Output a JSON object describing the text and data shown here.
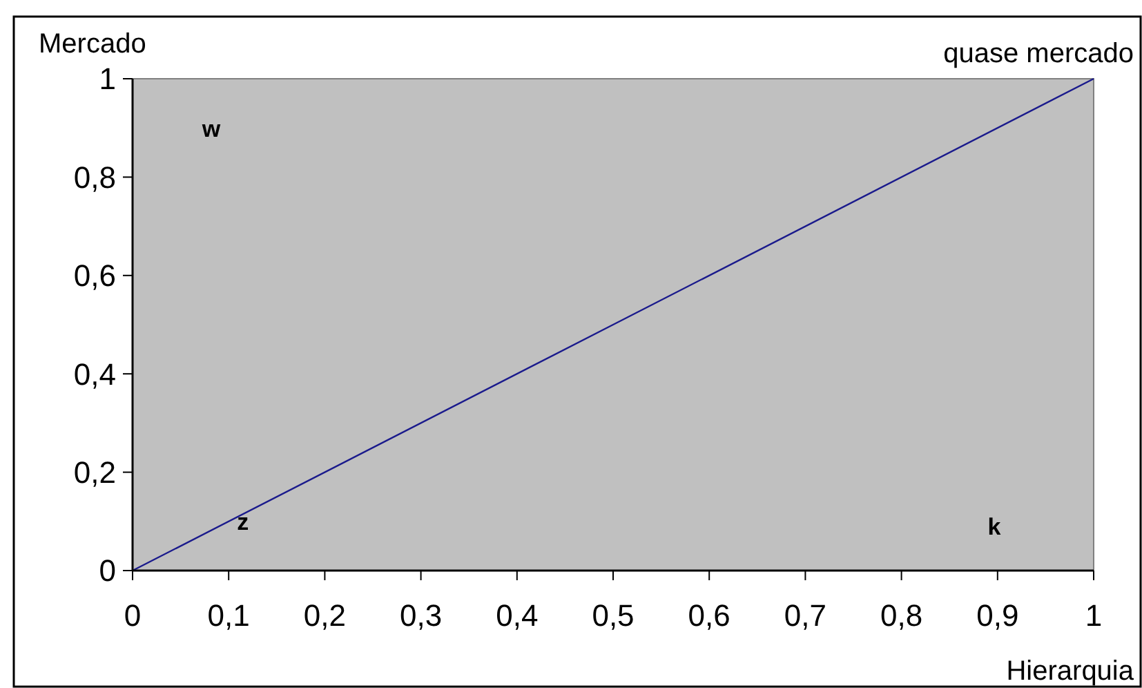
{
  "chart_data": {
    "type": "line",
    "xlabel": "Hierarquia",
    "ylabel": "Mercado",
    "x": [
      0,
      0.5,
      1
    ],
    "series": [
      {
        "color": "#1a1a8c",
        "values": [
          0,
          0.5,
          1
        ]
      }
    ],
    "xlim": [
      0,
      1
    ],
    "ylim": [
      0,
      1
    ],
    "xticks": [
      0,
      {
        "value": 0.1,
        "label": "0,1"
      },
      {
        "value": 0.2,
        "label": "0,2"
      },
      {
        "value": 0.3,
        "label": "0,3"
      },
      {
        "value": 0.4,
        "label": "0,4"
      },
      {
        "value": 0.5,
        "label": "0,5"
      },
      {
        "value": 0.6,
        "label": "0,6"
      },
      {
        "value": 0.7,
        "label": "0,7"
      },
      {
        "value": 0.8,
        "label": "0,8"
      },
      {
        "value": 0.9,
        "label": "0,9"
      },
      1
    ],
    "yticks": [
      0,
      {
        "value": 0.2,
        "label": "0,2"
      },
      {
        "value": 0.4,
        "label": "0,4"
      },
      {
        "value": 0.6,
        "label": "0,6"
      },
      {
        "value": 0.8,
        "label": "0,8"
      },
      1
    ],
    "annotations": [
      "w",
      {
        "text": "z",
        "x": 0.1,
        "y": 0.1
      },
      "k",
      "quase mercado"
    ],
    "grid": false,
    "marker": "none",
    "line_style": "solid"
  }
}
